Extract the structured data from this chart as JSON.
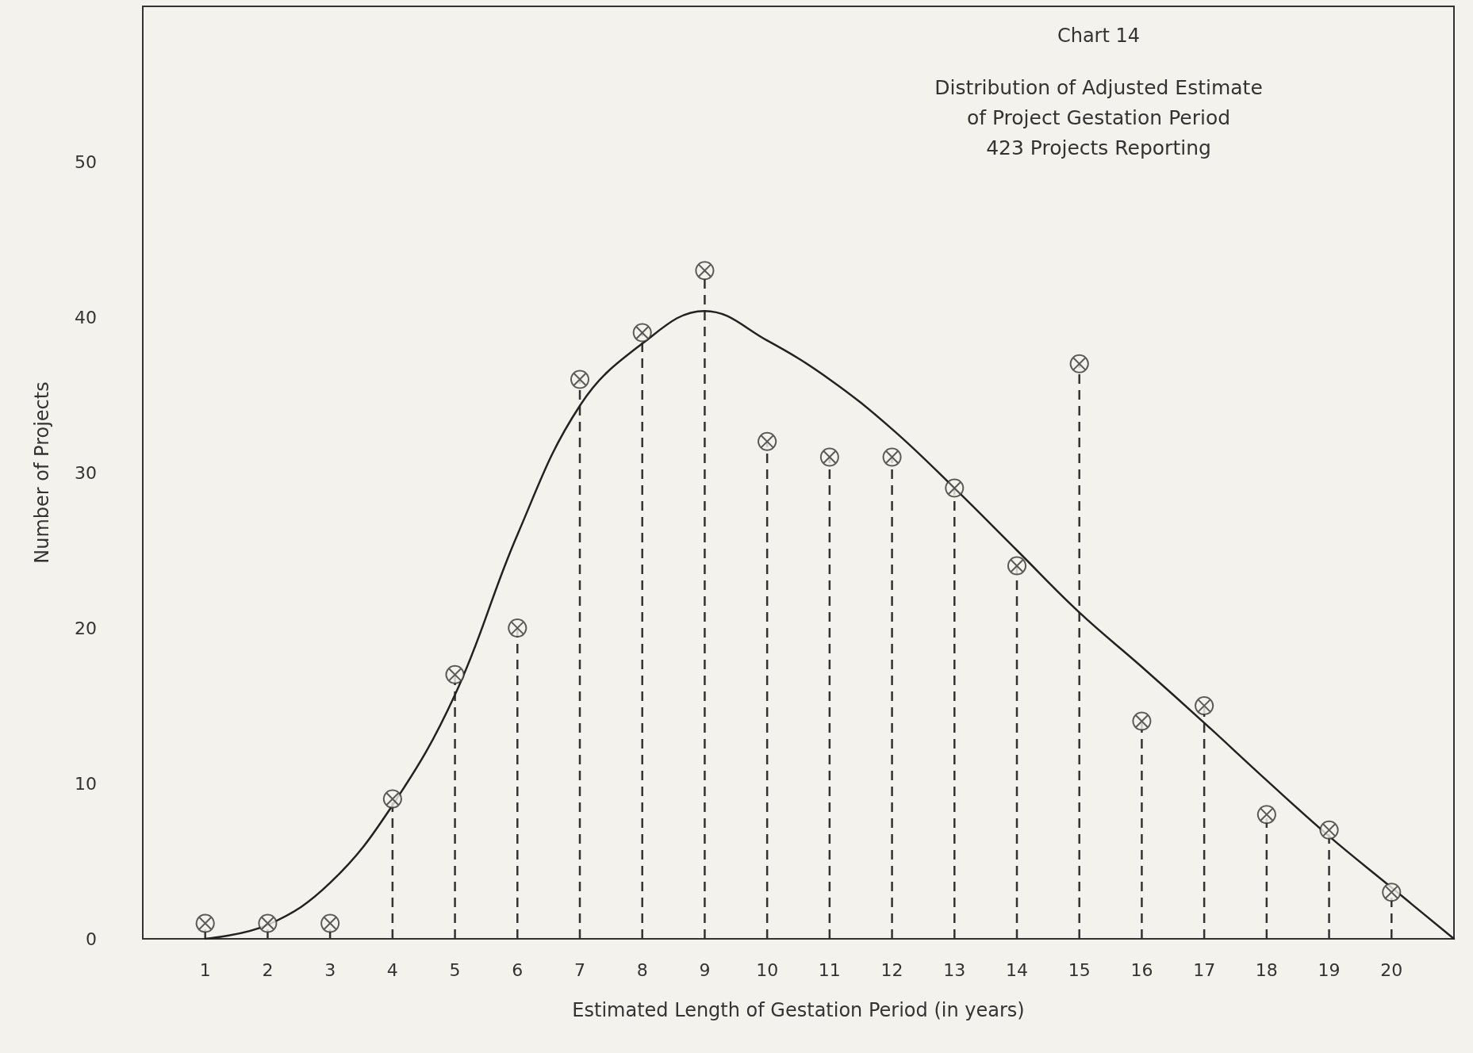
{
  "chart_data": {
    "type": "lollipop",
    "title": "Chart 14",
    "subtitle": "Distribution of Adjusted Estimate\nof Project Gestation Period\n423 Projects Reporting",
    "xlabel": "Estimated Length of Gestation Period (in years)",
    "ylabel": "Number of Projects",
    "x": [
      1,
      2,
      3,
      4,
      5,
      6,
      7,
      8,
      9,
      10,
      11,
      12,
      13,
      14,
      15,
      16,
      17,
      18,
      19,
      20
    ],
    "series": [
      {
        "color": "#333333",
        "marker": "cross",
        "line_style": "dashed",
        "values": [
          1,
          1,
          1,
          9,
          17,
          20,
          36,
          39,
          43,
          32,
          31,
          31,
          29,
          24,
          37,
          14,
          15,
          8,
          7,
          3
        ]
      },
      {
        "type": "line",
        "color": "#222222",
        "marker": "none",
        "line_style": "solid",
        "x": [
          1,
          2,
          3,
          4,
          5,
          6,
          7,
          8,
          9,
          10,
          11,
          12,
          13,
          14,
          15,
          16,
          17,
          18,
          19,
          20,
          21
        ],
        "values": [
          0,
          0.9,
          3.6,
          8.6,
          15.7,
          26,
          34.3,
          38.3,
          40.4,
          38.5,
          36,
          32.8,
          29,
          25,
          21,
          17.5,
          13.9,
          10.2,
          6.6,
          3.3,
          0
        ]
      }
    ],
    "xlim": [
      0,
      21
    ],
    "xticks": [
      1,
      2,
      3,
      4,
      5,
      6,
      7,
      8,
      9,
      10,
      11,
      12,
      13,
      14,
      15,
      16,
      17,
      18,
      19,
      20
    ],
    "ylim": [
      0,
      60
    ],
    "yticks": [
      0,
      10,
      20,
      30,
      40,
      50
    ]
  }
}
